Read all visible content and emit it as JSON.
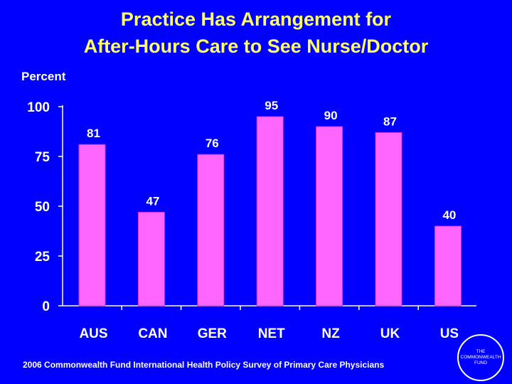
{
  "header": {
    "title_line1": "Practice Has Arrangement for",
    "title_line2": "After-Hours Care to See Nurse/Doctor"
  },
  "footer": {
    "source": "2006 Commonwealth Fund International Health Policy Survey of Primary Care Physicians",
    "logo_line1": "THE",
    "logo_line2": "COMMONWEALTH",
    "logo_line3": "FUND"
  },
  "colors": {
    "background": "#0000FF",
    "bar": "#FF66FF",
    "title": "#FFFF66",
    "text": "#FFFFFF"
  },
  "chart_data": {
    "type": "bar",
    "title": "Practice Has Arrangement for After-Hours Care to See Nurse/Doctor",
    "ylabel": "Percent",
    "xlabel": "",
    "categories": [
      "AUS",
      "CAN",
      "GER",
      "NET",
      "NZ",
      "UK",
      "US"
    ],
    "values": [
      81,
      47,
      76,
      95,
      90,
      87,
      40
    ],
    "data_labels": [
      "81",
      "47",
      "76",
      "95",
      "90",
      "87",
      "40"
    ],
    "ylim": [
      0,
      100
    ],
    "yticks": [
      0,
      25,
      50,
      75,
      100
    ],
    "ytick_labels": [
      "0",
      "25",
      "50",
      "75",
      "100"
    ],
    "grid": false,
    "legend": "none"
  }
}
